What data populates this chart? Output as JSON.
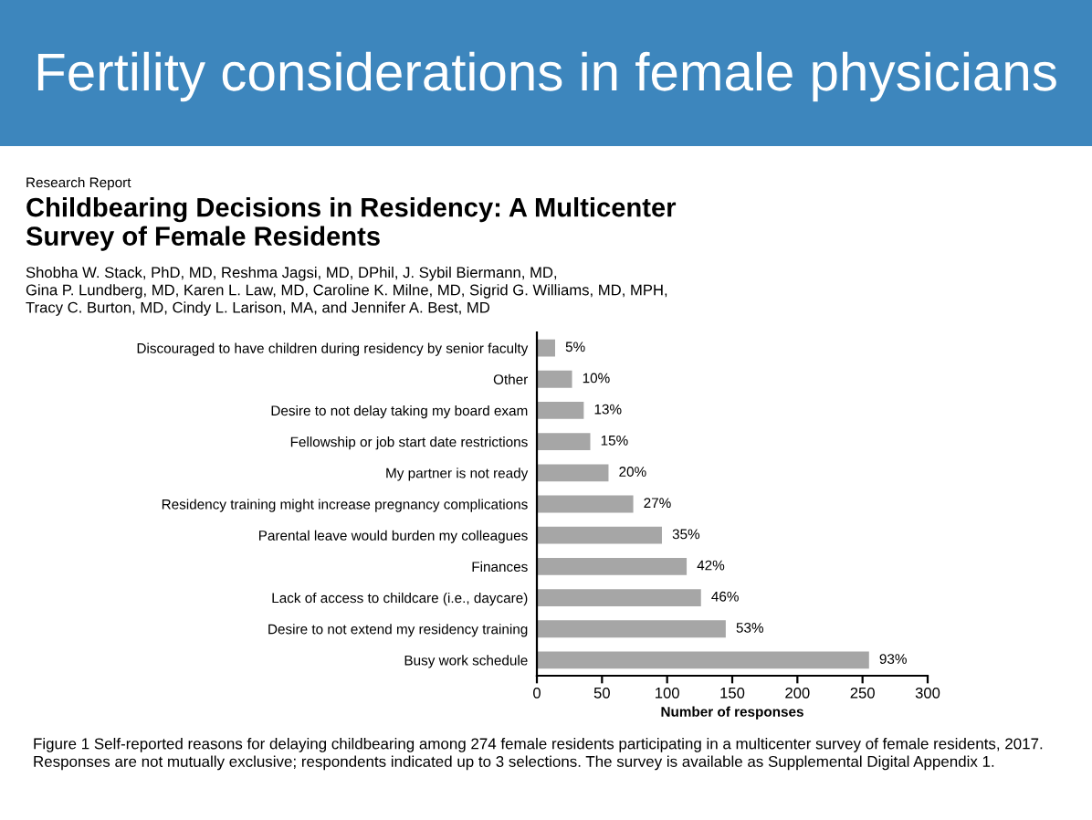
{
  "chart_data": {
    "type": "bar",
    "orientation": "horizontal",
    "title": "Fertility considerations in female physicians",
    "subtitle": "Childbearing Decisions in Residency: A Multicenter\nSurvey of Female Residents",
    "xlabel": "Number of responses",
    "categories": [
      "Discouraged to have children during residency by senior faculty",
      "Other",
      "Desire to not delay taking my board exam",
      "Fellowship or job start date restrictions",
      "My partner is not ready",
      "Residency training might increase pregnancy complications",
      "Parental leave would burden my colleagues",
      "Finances",
      "Lack of access to childcare (i.e., daycare)",
      "Desire to not extend my residency training",
      "Busy work schedule"
    ],
    "values": [
      14,
      27,
      36,
      41,
      55,
      74,
      96,
      115,
      126,
      145,
      255
    ],
    "color": "#a6a6a6",
    "xlim": [
      0,
      300
    ],
    "xticks": [
      0,
      50,
      100,
      150,
      200,
      250,
      300
    ],
    "annotations": [
      "Research Report",
      "Shobha W. Stack, PhD, MD, Reshma Jagsi, MD, DPhil, J. Sybil Biermann, MD,\nGina P. Lundberg, MD, Karen L. Law, MD, Caroline K. Milne, MD, Sigrid G. Williams, MD, MPH,\nTracy C. Burton, MD, Cindy L. Larison, MA, and Jennifer A. Best, MD",
      "Figure 1 Self-reported reasons for delaying childbearing among 274 female residents participating in a multicenter survey of female residents, 2017.\nResponses are not mutually exclusive; respondents indicated up to 3 selections. The survey is available as Supplemental Digital Appendix 1.",
      {
        "text": "5%",
        "x": 14,
        "y": "Discouraged to have children during residency by senior faculty"
      },
      {
        "text": "10%",
        "x": 27,
        "y": "Other"
      },
      {
        "text": "13%",
        "x": 36,
        "y": "Desire to not delay taking my board exam"
      },
      {
        "text": "15%",
        "x": 41,
        "y": "Fellowship or job start date restrictions"
      },
      {
        "text": "20%",
        "x": 55,
        "y": "My partner is not ready"
      },
      {
        "text": "27%",
        "x": 74,
        "y": "Residency training might increase pregnancy complications"
      },
      {
        "text": "35%",
        "x": 96,
        "y": "Parental leave would burden my colleagues"
      },
      {
        "text": "42%",
        "x": 115,
        "y": "Finances"
      },
      {
        "text": "46%",
        "x": 126,
        "y": "Lack of access to childcare (i.e., daycare)"
      },
      {
        "text": "53%",
        "x": 145,
        "y": "Desire to not extend my residency training"
      },
      {
        "text": "93%",
        "x": 255,
        "y": "Busy work schedule"
      }
    ]
  }
}
